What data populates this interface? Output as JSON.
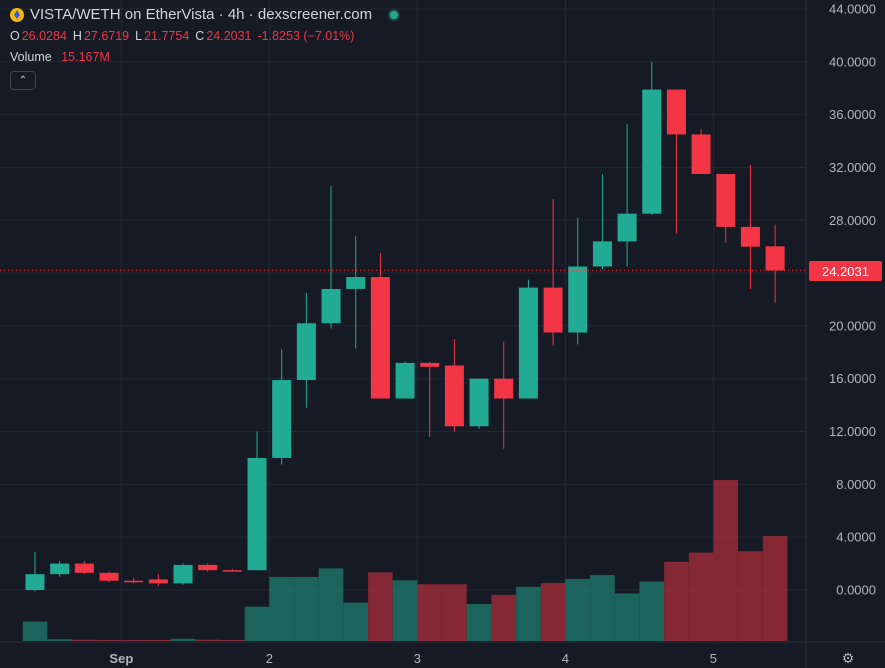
{
  "header": {
    "title": "VISTA/WETH on EtherVista · 4h · dexscreener.com",
    "logo_icon": "vista-token-icon",
    "status_icon": "live-status-dot"
  },
  "ohlc": {
    "o_label": "O",
    "o_value": "26.0284",
    "h_label": "H",
    "h_value": "27.6719",
    "l_label": "L",
    "l_value": "21.7754",
    "c_label": "C",
    "c_value": "24.2031",
    "change": "-1.8253 (−7.01%)"
  },
  "volume": {
    "label": "Volume",
    "value": "15.167M"
  },
  "last_price": "24.2031",
  "colors": {
    "up": "#22ab94",
    "down": "#f23645",
    "background": "#161a25",
    "grid": "#242733",
    "axis_text": "#b2b5be"
  },
  "chart_data": {
    "type": "candlestick",
    "interval": "4h",
    "y_ticks": [
      "44.0000",
      "40.0000",
      "36.0000",
      "32.0000",
      "28.0000",
      "24.0000",
      "20.0000",
      "16.0000",
      "12.0000",
      "8.0000",
      "4.0000",
      "0.0000"
    ],
    "ylim": [
      -4,
      44
    ],
    "x_ticks": [
      {
        "label": "Sep",
        "index": 3.5
      },
      {
        "label": "2",
        "index": 9.5
      },
      {
        "label": "3",
        "index": 15.5
      },
      {
        "label": "4",
        "index": 21.5
      },
      {
        "label": "5",
        "index": 27.5
      }
    ],
    "candles": [
      {
        "o": 0.0,
        "h": 2.9,
        "l": -0.1,
        "c": 1.2,
        "v": 1.47
      },
      {
        "o": 1.2,
        "h": 2.2,
        "l": 1.0,
        "c": 2.0,
        "v": 0.14
      },
      {
        "o": 2.0,
        "h": 2.2,
        "l": 1.2,
        "c": 1.3,
        "v": 0.09
      },
      {
        "o": 1.3,
        "h": 1.4,
        "l": 0.6,
        "c": 0.7,
        "v": 0.07
      },
      {
        "o": 0.7,
        "h": 0.9,
        "l": 0.5,
        "c": 0.6,
        "v": 0.07
      },
      {
        "o": 0.8,
        "h": 1.2,
        "l": 0.3,
        "c": 0.5,
        "v": 0.07
      },
      {
        "o": 0.5,
        "h": 2.0,
        "l": 0.4,
        "c": 1.9,
        "v": 0.17
      },
      {
        "o": 1.9,
        "h": 2.0,
        "l": 1.4,
        "c": 1.5,
        "v": 0.1
      },
      {
        "o": 1.5,
        "h": 1.6,
        "l": 1.4,
        "c": 1.45,
        "v": 0.05
      },
      {
        "o": 1.5,
        "h": 12.0,
        "l": 1.5,
        "c": 10.0,
        "v": 2.6
      },
      {
        "o": 10.0,
        "h": 18.2,
        "l": 9.5,
        "c": 15.9,
        "v": 4.85
      },
      {
        "o": 15.9,
        "h": 22.5,
        "l": 13.8,
        "c": 20.2,
        "v": 4.85
      },
      {
        "o": 20.2,
        "h": 30.6,
        "l": 19.8,
        "c": 22.8,
        "v": 5.5
      },
      {
        "o": 22.8,
        "h": 26.8,
        "l": 18.3,
        "c": 23.7,
        "v": 2.9
      },
      {
        "o": 23.7,
        "h": 25.5,
        "l": 14.5,
        "c": 14.5,
        "v": 5.2
      },
      {
        "o": 14.5,
        "h": 17.3,
        "l": 14.5,
        "c": 17.2,
        "v": 4.6
      },
      {
        "o": 17.2,
        "h": 17.3,
        "l": 11.6,
        "c": 16.9,
        "v": 4.3
      },
      {
        "o": 17.0,
        "h": 19.0,
        "l": 12.0,
        "c": 12.4,
        "v": 4.3
      },
      {
        "o": 12.4,
        "h": 16.0,
        "l": 12.2,
        "c": 16.0,
        "v": 2.8
      },
      {
        "o": 16.0,
        "h": 18.8,
        "l": 10.7,
        "c": 14.5,
        "v": 3.5
      },
      {
        "o": 14.5,
        "h": 23.5,
        "l": 14.5,
        "c": 22.9,
        "v": 4.1
      },
      {
        "o": 22.9,
        "h": 29.6,
        "l": 18.5,
        "c": 19.5,
        "v": 4.4
      },
      {
        "o": 19.5,
        "h": 28.2,
        "l": 18.6,
        "c": 24.5,
        "v": 4.7
      },
      {
        "o": 24.5,
        "h": 31.5,
        "l": 24.3,
        "c": 26.4,
        "v": 5.0
      },
      {
        "o": 26.4,
        "h": 35.3,
        "l": 24.5,
        "c": 28.5,
        "v": 3.6
      },
      {
        "o": 28.5,
        "h": 40.0,
        "l": 28.4,
        "c": 37.9,
        "v": 4.5
      },
      {
        "o": 37.9,
        "h": 37.9,
        "l": 27.0,
        "c": 34.5,
        "v": 6.0
      },
      {
        "o": 34.5,
        "h": 34.9,
        "l": 31.5,
        "c": 31.5,
        "v": 6.7
      },
      {
        "o": 31.5,
        "h": 31.5,
        "l": 26.3,
        "c": 27.5,
        "v": 12.2
      },
      {
        "o": 27.5,
        "h": 32.2,
        "l": 22.8,
        "c": 26.0,
        "v": 6.8
      },
      {
        "o": 26.0284,
        "h": 27.6719,
        "l": 21.7754,
        "c": 24.2031,
        "v": 7.95
      }
    ]
  }
}
